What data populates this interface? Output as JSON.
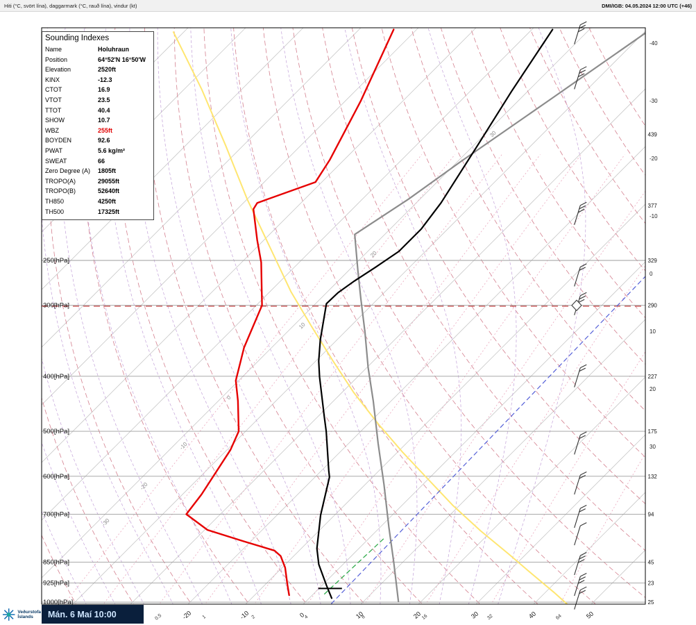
{
  "header": {
    "left_title": "Hiti (°C, svört lína), daggarmark (°C, rauð lína), vindur (kt)",
    "right_title": "DMI/IGB: 04.05.2024 12:00 UTC (+46)"
  },
  "indexes_box": {
    "title": "Sounding Indexes",
    "rows": [
      {
        "label": "Name",
        "value": "Holuhraun"
      },
      {
        "label": "Position",
        "value": "64°52'N 16°50'W"
      },
      {
        "label": "Elevation",
        "value": "2520ft"
      },
      {
        "label": "KINX",
        "value": "-12.3"
      },
      {
        "label": "CTOT",
        "value": "16.9"
      },
      {
        "label": "VTOT",
        "value": "23.5"
      },
      {
        "label": "TTOT",
        "value": "40.4"
      },
      {
        "label": "SHOW",
        "value": "10.7"
      },
      {
        "label": "WBZ",
        "value": "255ft",
        "highlight": true
      },
      {
        "label": "BOYDEN",
        "value": "92.6"
      },
      {
        "label": "PWAT",
        "value": "5.6 kg/m²"
      },
      {
        "label": "SWEAT",
        "value": "66"
      },
      {
        "label": "Zero Degree (A)",
        "value": "1805ft"
      },
      {
        "label": "TROPO(A)",
        "value": "29055ft"
      },
      {
        "label": "TROPO(B)",
        "value": "52640ft"
      },
      {
        "label": "TH850",
        "value": "4250ft"
      },
      {
        "label": "TH500",
        "value": "17325ft"
      }
    ]
  },
  "footer": {
    "logo_line1": "Veðurstofa",
    "logo_line2": "Íslands",
    "datetime": "Mán. 6 Maí 10:00"
  },
  "chart_data": {
    "type": "line",
    "diagram": "skew-t-log-p sounding",
    "station": "Holuhraun",
    "y_axis": {
      "unit": "hPa",
      "levels": [
        250,
        300,
        400,
        500,
        600,
        700,
        850,
        925,
        1000
      ],
      "labels": [
        "250[hPa]",
        "300[hPa]",
        "400[hPa]",
        "500[hPa]",
        "600[hPa]",
        "700[hPa]",
        "850[hPa]",
        "925[hPa]",
        "1000[hPa]"
      ]
    },
    "x_axis": {
      "unit": "°C",
      "ticks": [
        -20,
        -10,
        0,
        10,
        20,
        30,
        40,
        50
      ]
    },
    "right_axis": {
      "temp_ticks": [
        -40,
        -30,
        -20,
        -10,
        0,
        10,
        20,
        30
      ],
      "height_label_levels_hpa": [
        150,
        200,
        250,
        300,
        400,
        500,
        600,
        700,
        850,
        925,
        1000
      ],
      "height_labels": [
        "439",
        "377",
        "329",
        "290",
        "227",
        "175",
        "132",
        "94",
        "45",
        "23",
        "25"
      ]
    },
    "mixing_ratio_labels_gkg": [
      0.5,
      1,
      2,
      4,
      8,
      16,
      32,
      64
    ],
    "adiabat_inline_labels": [
      "-30",
      "-20",
      "-10",
      "0",
      "10",
      "20",
      "30"
    ],
    "tropopause_line_hpa": 301,
    "surface_marker": {
      "p": 946,
      "t_from": -0.1,
      "t_to": 4.0
    },
    "series": [
      {
        "name": "aux-yellow",
        "color": "#ffe671",
        "width": 2.0,
        "dash": "",
        "points_p_t": [
          [
            99,
            -121.8
          ],
          [
            125,
            -106.9
          ],
          [
            157,
            -93.0
          ],
          [
            195,
            -80.0
          ],
          [
            237,
            -67.7
          ],
          [
            284,
            -56.3
          ],
          [
            326,
            -46.9
          ],
          [
            375,
            -37.2
          ],
          [
            427,
            -28.0
          ],
          [
            485,
            -18.3
          ],
          [
            543,
            -9.3
          ],
          [
            608,
            0.1
          ],
          [
            675,
            8.8
          ],
          [
            749,
            18.1
          ],
          [
            822,
            26.9
          ],
          [
            894,
            34.7
          ],
          [
            959,
            41.3
          ],
          [
            1009,
            45.9
          ]
        ]
      },
      {
        "name": "aux-blue-dashed",
        "color": "#5560d8",
        "width": 1.2,
        "dash": "6 5",
        "points_p_t": [
          [
            260,
            2.5
          ],
          [
            1010,
            4.8
          ]
        ]
      },
      {
        "name": "freezing-level-green-dashed",
        "color": "#2faa4a",
        "width": 1.3,
        "dash": "6 5",
        "points_p_t": [
          [
            774,
            2.6
          ],
          [
            973,
            1.9
          ]
        ]
      },
      {
        "name": "parcel-reference-gray",
        "color": "#8c8c8c",
        "width": 2.2,
        "dash": "",
        "points_p_t": [
          [
            99,
            -39.6
          ],
          [
            129,
            -44.5
          ],
          [
            168,
            -49.5
          ],
          [
            195,
            -52.0
          ],
          [
            225,
            -55.2
          ],
          [
            261,
            -48.3
          ],
          [
            292,
            -43.0
          ],
          [
            335,
            -36.4
          ],
          [
            386,
            -29.8
          ],
          [
            443,
            -23.0
          ],
          [
            525,
            -14.9
          ],
          [
            621,
            -6.7
          ],
          [
            736,
            1.4
          ],
          [
            848,
            8.3
          ],
          [
            998,
            16.1
          ]
        ]
      },
      {
        "name": "temperature-black",
        "color": "#000000",
        "width": 2.2,
        "dash": "",
        "points_p_t": [
          [
            98,
            -56.4
          ],
          [
            126,
            -52.8
          ],
          [
            157,
            -49.3
          ],
          [
            198,
            -45.7
          ],
          [
            220,
            -44.6
          ],
          [
            241,
            -44.6
          ],
          [
            257,
            -45.9
          ],
          [
            272,
            -47.2
          ],
          [
            285,
            -48.0
          ],
          [
            298,
            -48.1
          ],
          [
            345,
            -42.9
          ],
          [
            376,
            -39.5
          ],
          [
            401,
            -36.6
          ],
          [
            470,
            -29.0
          ],
          [
            500,
            -26.0
          ],
          [
            587,
            -18.7
          ],
          [
            602,
            -17.5
          ],
          [
            680,
            -13.5
          ],
          [
            703,
            -12.4
          ],
          [
            804,
            -7.3
          ],
          [
            858,
            -4.2
          ],
          [
            933,
            0.7
          ],
          [
            984,
            3.9
          ]
        ]
      },
      {
        "name": "dewpoint-red",
        "color": "#e60000",
        "width": 2.4,
        "dash": "",
        "points_p_t": [
          [
            98,
            -84.0
          ],
          [
            131,
            -77.3
          ],
          [
            166,
            -72.5
          ],
          [
            182,
            -71.1
          ],
          [
            198,
            -77.6
          ],
          [
            203,
            -77.2
          ],
          [
            230,
            -71.2
          ],
          [
            252,
            -66.6
          ],
          [
            300,
            -59.0
          ],
          [
            356,
            -54.8
          ],
          [
            407,
            -50.5
          ],
          [
            442,
            -46.6
          ],
          [
            500,
            -41.2
          ],
          [
            539,
            -39.4
          ],
          [
            646,
            -36.7
          ],
          [
            700,
            -35.9
          ],
          [
            746,
            -29.5
          ],
          [
            781,
            -21.3
          ],
          [
            811,
            -14.3
          ],
          [
            829,
            -12.3
          ],
          [
            869,
            -9.5
          ],
          [
            932,
            -6.1
          ],
          [
            972,
            -4.0
          ]
        ]
      }
    ],
    "wind_barbs": [
      {
        "p": 100,
        "ticks": 3
      },
      {
        "p": 120,
        "ticks": 3
      },
      {
        "p": 208,
        "ticks": 3
      },
      {
        "p": 267,
        "ticks": 2
      },
      {
        "p": 300,
        "ticks": 3,
        "diamond": true
      },
      {
        "p": 402,
        "ticks": 2
      },
      {
        "p": 528,
        "ticks": 2
      },
      {
        "p": 621,
        "ticks": 2
      },
      {
        "p": 711,
        "ticks": 2
      },
      {
        "p": 763,
        "ticks": 1
      },
      {
        "p": 861,
        "ticks": 3
      },
      {
        "p": 937,
        "ticks": 3
      },
      {
        "p": 990,
        "ticks": 2
      }
    ]
  }
}
